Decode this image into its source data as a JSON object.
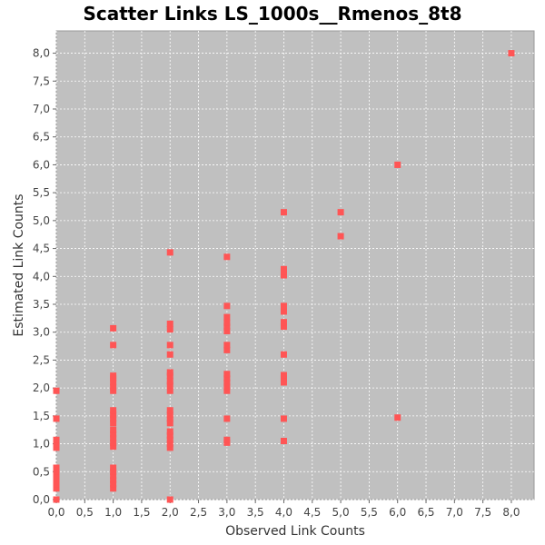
{
  "chart_data": {
    "type": "scatter",
    "title": "Scatter Links LS_1000s__Rmenos_8t8",
    "xlabel": "Observed Link Counts",
    "ylabel": "Estimated Link Counts",
    "xlim": [
      0,
      8.4
    ],
    "ylim": [
      0,
      8.4
    ],
    "x_ticks": [
      "0,0",
      "0,5",
      "1,0",
      "1,5",
      "2,0",
      "2,5",
      "3,0",
      "3,5",
      "4,0",
      "4,5",
      "5,0",
      "5,5",
      "6,0",
      "6,5",
      "7,0",
      "7,5",
      "8,0"
    ],
    "y_ticks": [
      "0,0",
      "0,5",
      "1,0",
      "1,5",
      "2,0",
      "2,5",
      "3,0",
      "3,5",
      "4,0",
      "4,5",
      "5,0",
      "5,5",
      "6,0",
      "6,5",
      "7,0",
      "7,5",
      "8,0"
    ],
    "grid": true,
    "background_color": "#c0c0c0",
    "point_color": "#ff5555",
    "points": [
      [
        0,
        0.0
      ],
      [
        0,
        0.2
      ],
      [
        0,
        0.27
      ],
      [
        0,
        0.35
      ],
      [
        0,
        0.42
      ],
      [
        0,
        0.5
      ],
      [
        0,
        0.57
      ],
      [
        0,
        0.93
      ],
      [
        0,
        1.0
      ],
      [
        0,
        1.07
      ],
      [
        0,
        1.45
      ],
      [
        0,
        1.95
      ],
      [
        1,
        0.2
      ],
      [
        1,
        0.28
      ],
      [
        1,
        0.35
      ],
      [
        1,
        0.42
      ],
      [
        1,
        0.5
      ],
      [
        1,
        0.57
      ],
      [
        1,
        0.95
      ],
      [
        1,
        1.02
      ],
      [
        1,
        1.1
      ],
      [
        1,
        1.17
      ],
      [
        1,
        1.25
      ],
      [
        1,
        1.37
      ],
      [
        1,
        1.45
      ],
      [
        1,
        1.52
      ],
      [
        1,
        1.6
      ],
      [
        1,
        1.95
      ],
      [
        1,
        2.02
      ],
      [
        1,
        2.1
      ],
      [
        1,
        2.17
      ],
      [
        1,
        2.22
      ],
      [
        1,
        2.77
      ],
      [
        1,
        3.07
      ],
      [
        2,
        0.0
      ],
      [
        2,
        0.93
      ],
      [
        2,
        1.0
      ],
      [
        2,
        1.07
      ],
      [
        2,
        1.15
      ],
      [
        2,
        1.22
      ],
      [
        2,
        1.37
      ],
      [
        2,
        1.45
      ],
      [
        2,
        1.52
      ],
      [
        2,
        1.6
      ],
      [
        2,
        1.95
      ],
      [
        2,
        2.05
      ],
      [
        2,
        2.12
      ],
      [
        2,
        2.22
      ],
      [
        2,
        2.28
      ],
      [
        2,
        2.6
      ],
      [
        2,
        2.77
      ],
      [
        2,
        3.05
      ],
      [
        2,
        3.15
      ],
      [
        2,
        4.43
      ],
      [
        3,
        1.02
      ],
      [
        3,
        1.07
      ],
      [
        3,
        1.45
      ],
      [
        3,
        1.95
      ],
      [
        3,
        2.02
      ],
      [
        3,
        2.1
      ],
      [
        3,
        2.17
      ],
      [
        3,
        2.25
      ],
      [
        3,
        2.68
      ],
      [
        3,
        2.77
      ],
      [
        3,
        3.02
      ],
      [
        3,
        3.1
      ],
      [
        3,
        3.17
      ],
      [
        3,
        3.27
      ],
      [
        3,
        3.47
      ],
      [
        3,
        4.35
      ],
      [
        4,
        1.05
      ],
      [
        4,
        1.45
      ],
      [
        4,
        2.1
      ],
      [
        4,
        2.17
      ],
      [
        4,
        2.23
      ],
      [
        4,
        2.6
      ],
      [
        4,
        3.1
      ],
      [
        4,
        3.18
      ],
      [
        4,
        3.37
      ],
      [
        4,
        3.47
      ],
      [
        4,
        4.02
      ],
      [
        4,
        4.08
      ],
      [
        4,
        4.13
      ],
      [
        4,
        5.15
      ],
      [
        5,
        4.72
      ],
      [
        5,
        5.15
      ],
      [
        6,
        1.47
      ],
      [
        6,
        6.0
      ],
      [
        8,
        8.0
      ]
    ]
  }
}
